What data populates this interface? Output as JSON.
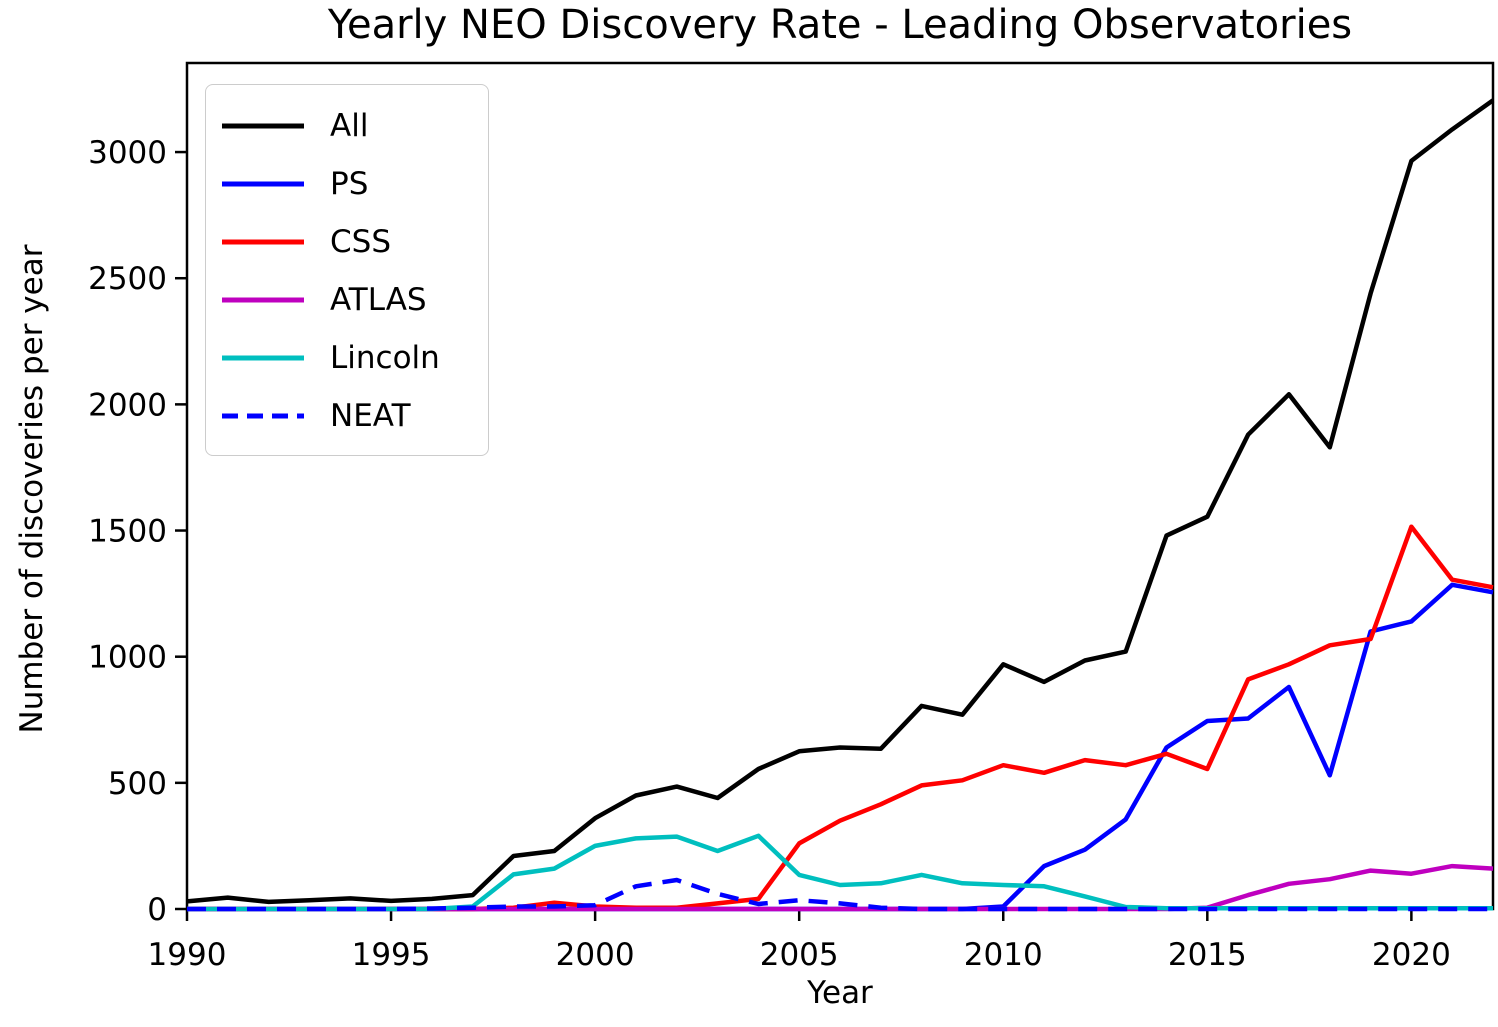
{
  "chart_data": {
    "type": "line",
    "title": "Yearly NEO Discovery Rate - Leading Observatories",
    "xlabel": "Year",
    "ylabel": "Number of discoveries per year",
    "xlim": [
      1990,
      2022
    ],
    "ylim": [
      0,
      3353
    ],
    "xticks": [
      1990,
      1995,
      2000,
      2005,
      2010,
      2015,
      2020
    ],
    "yticks": [
      0,
      500,
      1000,
      1500,
      2000,
      2500,
      3000
    ],
    "grid": false,
    "legend_position": "upper left",
    "x": [
      1990,
      1991,
      1992,
      1993,
      1994,
      1995,
      1996,
      1997,
      1998,
      1999,
      2000,
      2001,
      2002,
      2003,
      2004,
      2005,
      2006,
      2007,
      2008,
      2009,
      2010,
      2011,
      2012,
      2013,
      2014,
      2015,
      2016,
      2017,
      2018,
      2019,
      2020,
      2021,
      2022
    ],
    "series": [
      {
        "name": "All",
        "color": "#000000",
        "style": "solid",
        "values": [
          30,
          45,
          28,
          35,
          42,
          32,
          40,
          55,
          210,
          230,
          360,
          450,
          485,
          440,
          555,
          625,
          640,
          635,
          805,
          770,
          970,
          900,
          985,
          1020,
          1480,
          1555,
          1880,
          2040,
          1830,
          2440,
          2965,
          3090,
          3205
        ]
      },
      {
        "name": "PS",
        "color": "#0000ff",
        "style": "solid",
        "values": [
          0,
          0,
          0,
          0,
          0,
          0,
          0,
          0,
          0,
          0,
          0,
          0,
          0,
          0,
          0,
          0,
          0,
          0,
          0,
          0,
          10,
          170,
          235,
          355,
          640,
          745,
          755,
          880,
          530,
          1100,
          1140,
          1285,
          1255
        ]
      },
      {
        "name": "CSS",
        "color": "#ff0000",
        "style": "solid",
        "values": [
          0,
          0,
          0,
          0,
          0,
          0,
          0,
          0,
          5,
          25,
          10,
          5,
          5,
          22,
          40,
          260,
          350,
          415,
          490,
          510,
          570,
          540,
          590,
          570,
          615,
          555,
          910,
          970,
          1045,
          1070,
          1515,
          1305,
          1275
        ]
      },
      {
        "name": "ATLAS",
        "color": "#bf00bf",
        "style": "solid",
        "values": [
          0,
          0,
          0,
          0,
          0,
          0,
          0,
          0,
          0,
          0,
          0,
          0,
          0,
          0,
          0,
          0,
          0,
          0,
          0,
          0,
          0,
          0,
          0,
          0,
          0,
          5,
          55,
          100,
          118,
          152,
          140,
          170,
          160
        ]
      },
      {
        "name": "Lincoln",
        "color": "#00bfbf",
        "style": "solid",
        "values": [
          0,
          0,
          0,
          0,
          0,
          0,
          0,
          10,
          137,
          160,
          250,
          280,
          287,
          230,
          290,
          135,
          95,
          102,
          135,
          102,
          95,
          90,
          50,
          8,
          3,
          3,
          3,
          3,
          3,
          3,
          3,
          3,
          3
        ]
      },
      {
        "name": "NEAT",
        "color": "#0000ff",
        "style": "dashed",
        "values": [
          0,
          0,
          0,
          0,
          0,
          0,
          2,
          5,
          10,
          10,
          15,
          90,
          115,
          60,
          20,
          35,
          22,
          5,
          0,
          0,
          0,
          0,
          0,
          0,
          0,
          0,
          0,
          0,
          0,
          0,
          0,
          0,
          0
        ]
      }
    ]
  }
}
